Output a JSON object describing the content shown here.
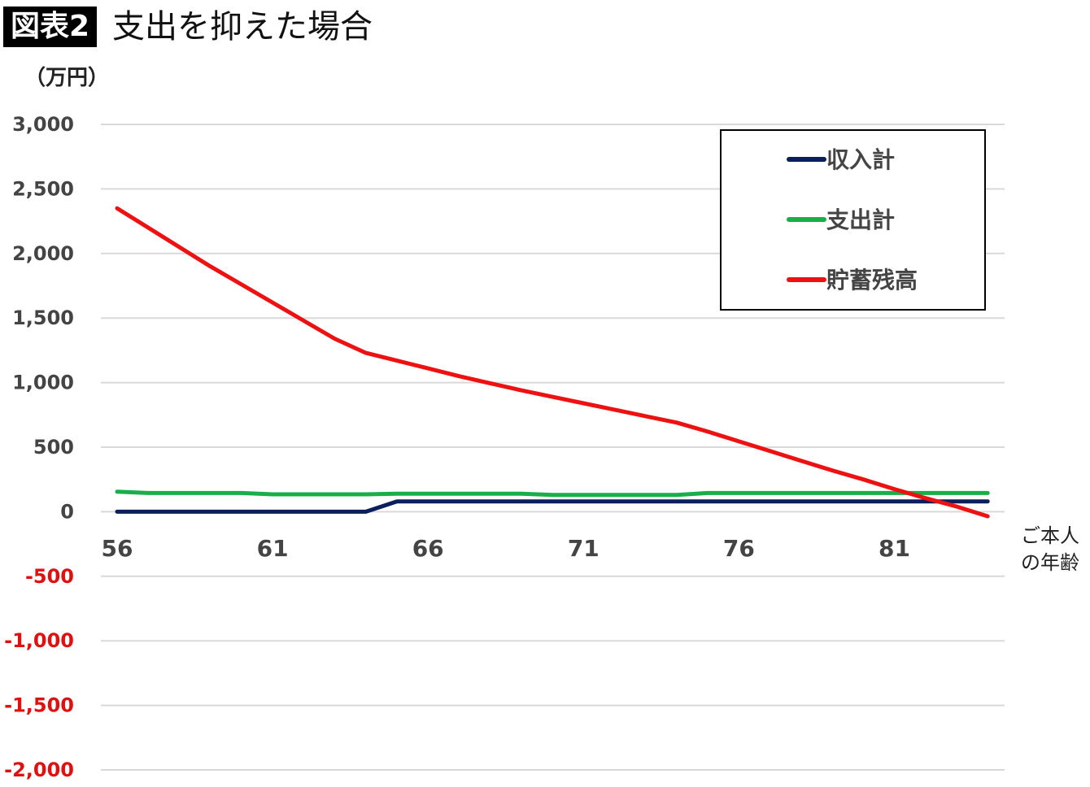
{
  "header": {
    "badge": "図表2",
    "title": "支出を抑えた場合"
  },
  "chart_data": {
    "type": "line",
    "ylabel": "（万円）",
    "xlabel_lines": [
      "ご本人",
      "の年齢"
    ],
    "x": [
      56,
      57,
      58,
      59,
      60,
      61,
      62,
      63,
      64,
      65,
      66,
      67,
      68,
      69,
      70,
      71,
      72,
      73,
      74,
      75,
      76,
      77,
      78,
      79,
      80,
      81,
      82,
      83,
      84
    ],
    "xticks": [
      56,
      61,
      66,
      71,
      76,
      81
    ],
    "ylim": [
      -2000,
      3000
    ],
    "yticks": [
      3000,
      2500,
      2000,
      1500,
      1000,
      500,
      0,
      -500,
      -1000,
      -1500,
      -2000
    ],
    "ytick_labels": [
      "3,000",
      "2,500",
      "2,000",
      "1,500",
      "1,000",
      "500",
      "0",
      "-500",
      "-1,000",
      "-1,500",
      "-2,000"
    ],
    "grid": true,
    "legend_position": "top-right",
    "series": [
      {
        "name": "収入計",
        "color": "#0a1f5c",
        "values": [
          0,
          0,
          0,
          0,
          0,
          0,
          0,
          0,
          0,
          80,
          80,
          80,
          80,
          80,
          80,
          80,
          80,
          80,
          80,
          80,
          80,
          80,
          80,
          80,
          80,
          80,
          80,
          80,
          80
        ]
      },
      {
        "name": "支出計",
        "color": "#1aae4a",
        "values": [
          155,
          145,
          145,
          145,
          145,
          135,
          135,
          135,
          135,
          140,
          140,
          140,
          140,
          140,
          130,
          130,
          130,
          130,
          130,
          145,
          145,
          145,
          145,
          145,
          145,
          145,
          145,
          145,
          145
        ]
      },
      {
        "name": "貯蓄残高",
        "color": "#ee1111",
        "values": [
          2350,
          2200,
          2050,
          1900,
          1760,
          1620,
          1480,
          1340,
          1230,
          1170,
          1110,
          1050,
          995,
          940,
          890,
          840,
          790,
          740,
          690,
          620,
          545,
          470,
          395,
          320,
          250,
          175,
          105,
          40,
          -35
        ]
      }
    ]
  }
}
